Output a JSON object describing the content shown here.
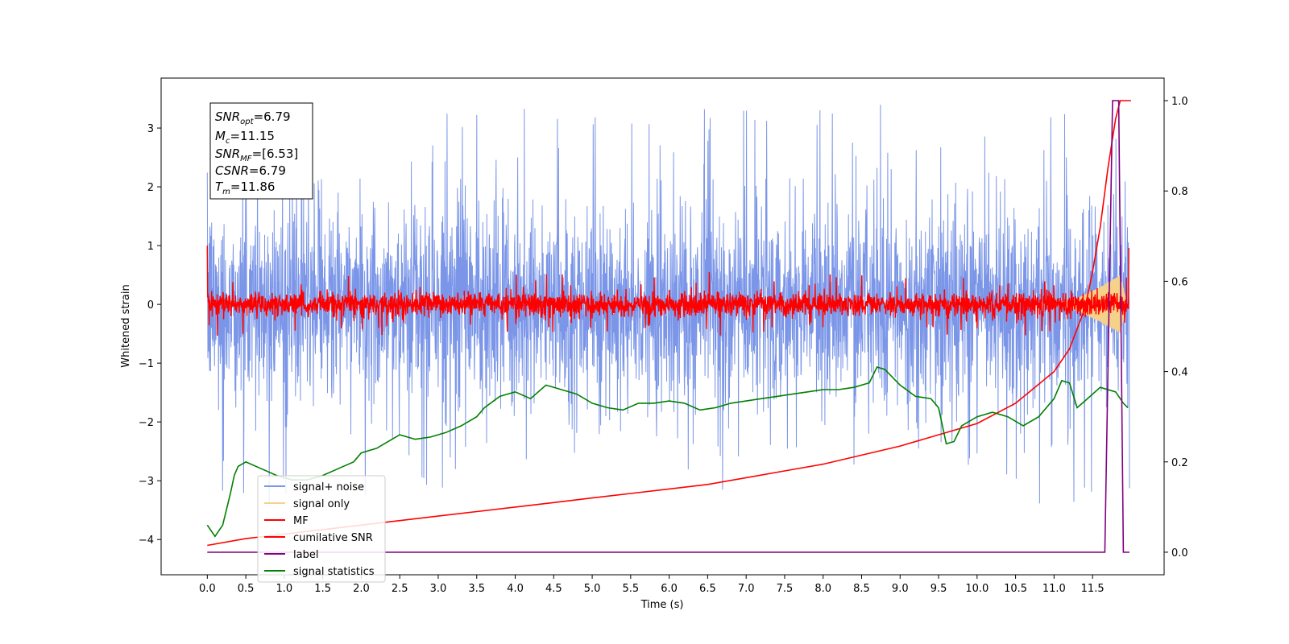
{
  "chart_data": {
    "type": "line",
    "xlabel": "Time (s)",
    "ylabel": "Whitened strain",
    "xlim": [
      -0.6,
      12.43
    ],
    "ylim": [
      -4.6,
      3.85
    ],
    "y2lim": [
      -0.05,
      1.05
    ],
    "x_ticks": [
      "0.0",
      "0.5",
      "1.0",
      "1.5",
      "2.0",
      "2.5",
      "3.0",
      "3.5",
      "4.0",
      "4.5",
      "5.0",
      "5.5",
      "6.0",
      "6.5",
      "7.0",
      "7.5",
      "8.0",
      "8.5",
      "9.0",
      "9.5",
      "10.0",
      "10.5",
      "11.0",
      "11.5"
    ],
    "y_ticks": [
      "3",
      "2",
      "1",
      "0",
      "−1",
      "−2",
      "−3",
      "−4"
    ],
    "y2_ticks": [
      "1.0",
      "0.8",
      "0.6",
      "0.4",
      "0.2",
      "0.0"
    ],
    "info_box": {
      "snr_opt": {
        "main": "SNR",
        "sub": "opt",
        "value": "=6.79"
      },
      "mc": {
        "main": "M",
        "sub": "c",
        "value": "=11.15"
      },
      "snr_mf": {
        "main": "SNR",
        "sub": "MF",
        "value": "=[6.53]"
      },
      "csnr": {
        "main": "CSNR",
        "sub": "",
        "value": "=6.79"
      },
      "tm": {
        "main": "T",
        "sub": "m",
        "value": "=11.86"
      }
    },
    "legend": {
      "placement": "lower-left",
      "entries": [
        {
          "label": "signal+ noise",
          "color": "#7b96e8"
        },
        {
          "label": "signal only",
          "color": "#f5d28a"
        },
        {
          "label": "MF",
          "color": "#ff0000"
        },
        {
          "label": "cumilative SNR",
          "color": "#ff0000"
        },
        {
          "label": "label",
          "color": "#800080"
        },
        {
          "label": "signal statistics",
          "color": "#008000"
        }
      ]
    },
    "series": [
      {
        "name": "signal+ noise",
        "axis": "left",
        "color": "#7b96e8",
        "description": "whitened noise, approximately ±1 sigma with spikes up to about ±3.4",
        "x_range": [
          0.0,
          11.98
        ],
        "sigma": 0.95,
        "peak": 3.4
      },
      {
        "name": "signal only",
        "axis": "left",
        "color": "#f5d28a",
        "envelope_points": [
          [
            0.0,
            0.0
          ],
          [
            11.0,
            0.02
          ],
          [
            11.3,
            0.1
          ],
          [
            11.6,
            0.3
          ],
          [
            11.8,
            0.45
          ],
          [
            11.86,
            0.5
          ],
          [
            11.95,
            0.0
          ]
        ]
      },
      {
        "name": "MF",
        "axis": "left",
        "color": "#ff0000",
        "description": "matched-filter output approximately ±0.25 with spikes to about ±0.55, starting at 1.0",
        "x_range": [
          0.0,
          11.98
        ],
        "start_value": 1.0,
        "sigma": 0.1
      },
      {
        "name": "cumilative SNR",
        "axis": "right",
        "color": "#ff0000",
        "points": [
          [
            0.0,
            0.015
          ],
          [
            0.5,
            0.03
          ],
          [
            1.0,
            0.04
          ],
          [
            1.5,
            0.05
          ],
          [
            2.0,
            0.06
          ],
          [
            2.5,
            0.07
          ],
          [
            3.0,
            0.08
          ],
          [
            3.5,
            0.09
          ],
          [
            4.0,
            0.1
          ],
          [
            4.5,
            0.11
          ],
          [
            5.0,
            0.12
          ],
          [
            5.5,
            0.13
          ],
          [
            6.0,
            0.14
          ],
          [
            6.5,
            0.15
          ],
          [
            7.0,
            0.165
          ],
          [
            7.5,
            0.18
          ],
          [
            8.0,
            0.195
          ],
          [
            8.5,
            0.215
          ],
          [
            9.0,
            0.235
          ],
          [
            9.5,
            0.26
          ],
          [
            10.0,
            0.285
          ],
          [
            10.5,
            0.33
          ],
          [
            11.0,
            0.4
          ],
          [
            11.2,
            0.45
          ],
          [
            11.4,
            0.54
          ],
          [
            11.5,
            0.62
          ],
          [
            11.6,
            0.72
          ],
          [
            11.7,
            0.85
          ],
          [
            11.8,
            0.96
          ],
          [
            11.86,
            1.0
          ],
          [
            12.0,
            1.0
          ]
        ]
      },
      {
        "name": "label",
        "axis": "right",
        "color": "#800080",
        "points": [
          [
            0.0,
            0.0
          ],
          [
            11.66,
            0.0
          ],
          [
            11.76,
            1.0
          ],
          [
            11.84,
            1.0
          ],
          [
            11.9,
            0.0
          ],
          [
            11.98,
            0.0
          ]
        ]
      },
      {
        "name": "signal statistics",
        "axis": "right",
        "color": "#008000",
        "points": [
          [
            0.0,
            0.06
          ],
          [
            0.1,
            0.035
          ],
          [
            0.2,
            0.06
          ],
          [
            0.3,
            0.13
          ],
          [
            0.35,
            0.17
          ],
          [
            0.4,
            0.19
          ],
          [
            0.5,
            0.2
          ],
          [
            0.7,
            0.185
          ],
          [
            0.9,
            0.17
          ],
          [
            1.1,
            0.16
          ],
          [
            1.3,
            0.16
          ],
          [
            1.5,
            0.17
          ],
          [
            1.7,
            0.185
          ],
          [
            1.9,
            0.2
          ],
          [
            2.0,
            0.22
          ],
          [
            2.2,
            0.23
          ],
          [
            2.4,
            0.25
          ],
          [
            2.5,
            0.26
          ],
          [
            2.7,
            0.25
          ],
          [
            2.9,
            0.255
          ],
          [
            3.1,
            0.265
          ],
          [
            3.3,
            0.28
          ],
          [
            3.5,
            0.3
          ],
          [
            3.6,
            0.32
          ],
          [
            3.8,
            0.345
          ],
          [
            4.0,
            0.355
          ],
          [
            4.2,
            0.34
          ],
          [
            4.4,
            0.37
          ],
          [
            4.6,
            0.36
          ],
          [
            4.8,
            0.35
          ],
          [
            5.0,
            0.33
          ],
          [
            5.2,
            0.32
          ],
          [
            5.4,
            0.315
          ],
          [
            5.6,
            0.33
          ],
          [
            5.8,
            0.33
          ],
          [
            6.0,
            0.335
          ],
          [
            6.2,
            0.33
          ],
          [
            6.4,
            0.315
          ],
          [
            6.6,
            0.32
          ],
          [
            6.8,
            0.33
          ],
          [
            7.0,
            0.335
          ],
          [
            7.2,
            0.34
          ],
          [
            7.4,
            0.345
          ],
          [
            7.6,
            0.35
          ],
          [
            7.8,
            0.355
          ],
          [
            8.0,
            0.36
          ],
          [
            8.2,
            0.36
          ],
          [
            8.4,
            0.365
          ],
          [
            8.6,
            0.375
          ],
          [
            8.7,
            0.41
          ],
          [
            8.8,
            0.405
          ],
          [
            9.0,
            0.37
          ],
          [
            9.2,
            0.345
          ],
          [
            9.4,
            0.34
          ],
          [
            9.5,
            0.32
          ],
          [
            9.6,
            0.24
          ],
          [
            9.7,
            0.245
          ],
          [
            9.8,
            0.28
          ],
          [
            10.0,
            0.3
          ],
          [
            10.2,
            0.31
          ],
          [
            10.4,
            0.3
          ],
          [
            10.6,
            0.28
          ],
          [
            10.8,
            0.3
          ],
          [
            11.0,
            0.34
          ],
          [
            11.1,
            0.38
          ],
          [
            11.2,
            0.375
          ],
          [
            11.3,
            0.32
          ],
          [
            11.4,
            0.335
          ],
          [
            11.6,
            0.365
          ],
          [
            11.8,
            0.355
          ],
          [
            11.9,
            0.33
          ],
          [
            11.96,
            0.32
          ]
        ]
      }
    ]
  }
}
